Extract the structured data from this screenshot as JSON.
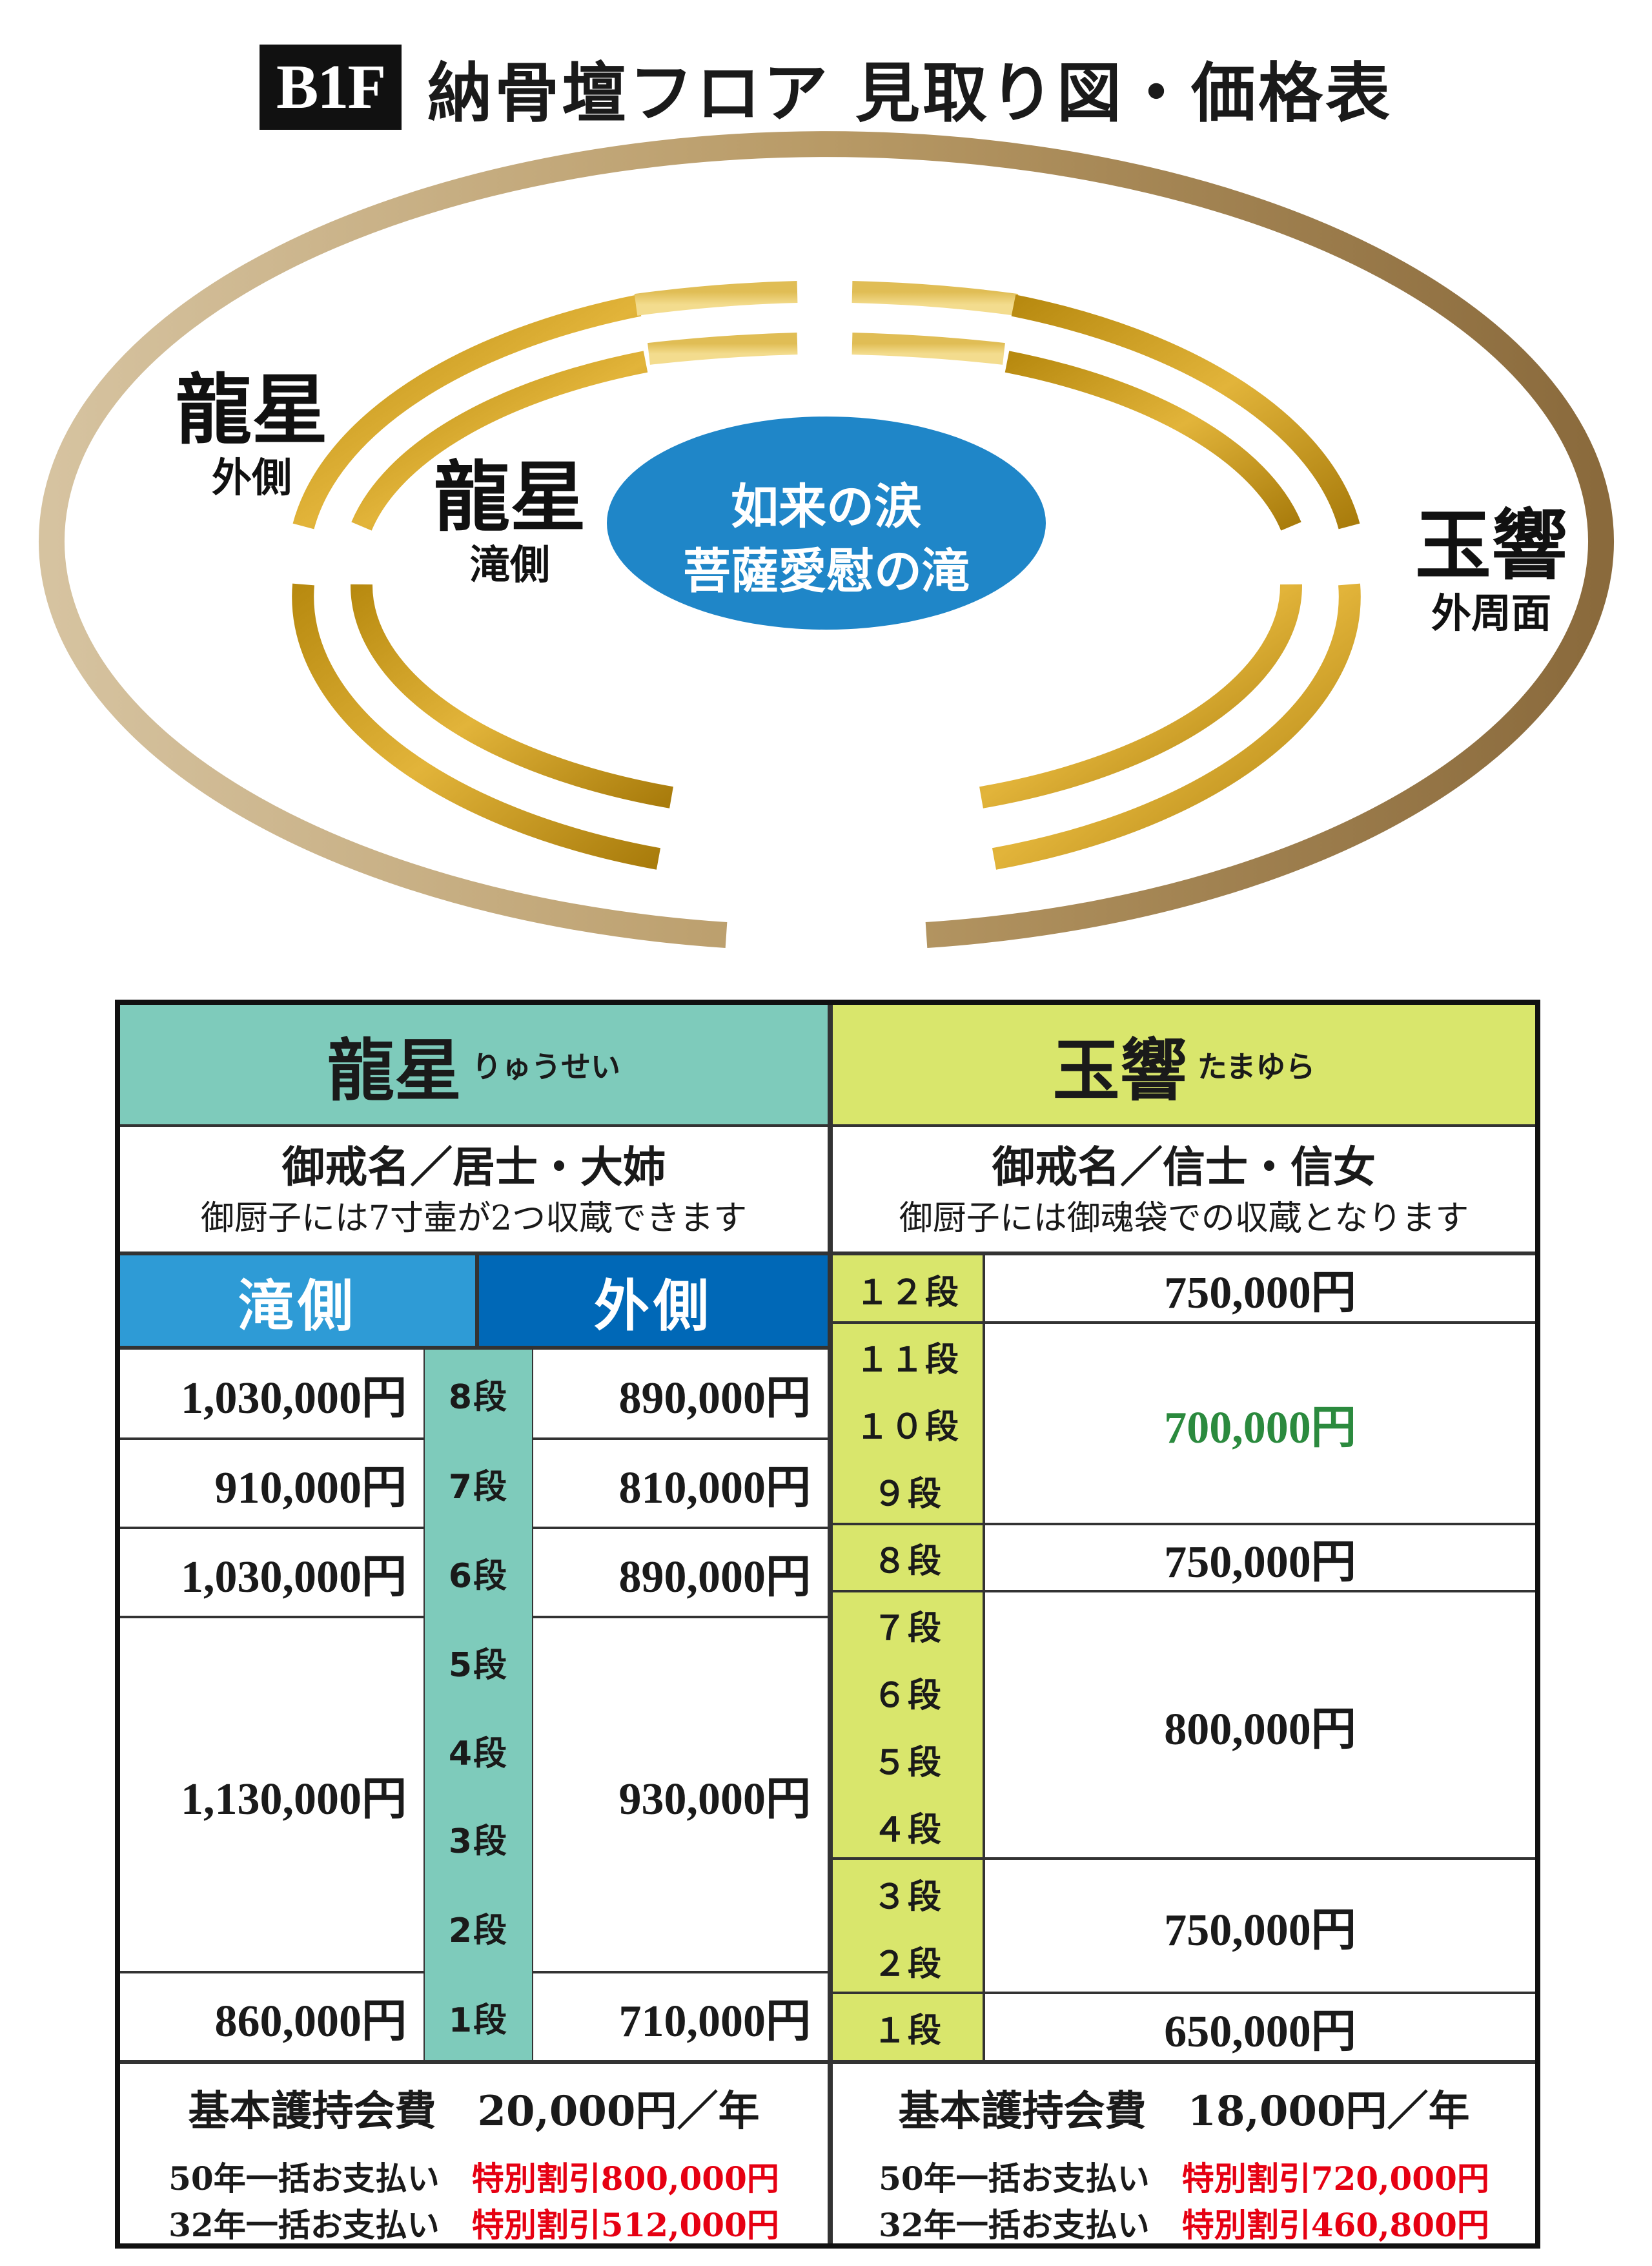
{
  "header": {
    "floor": "B1F",
    "title": "納骨壇フロア 見取り図・価格表"
  },
  "map": {
    "left_outer": {
      "name": "龍星",
      "sub": "外側"
    },
    "left_inner": {
      "name": "龍星",
      "sub": "滝側"
    },
    "center": {
      "line1": "如来の涙",
      "line2": "菩薩愛慰の滝"
    },
    "right": {
      "name": "玉響",
      "sub": "外周面"
    }
  },
  "ryusei": {
    "name": "龍星",
    "reading": "りゅうせい",
    "desc1": "御戒名／居士・大姉",
    "desc2": "御厨子には7寸壷が2つ収蔵できます",
    "col_taki": "滝側",
    "col_soto": "外側",
    "rows": [
      {
        "taki": "1,030,000円",
        "soto": "890,000円"
      },
      {
        "taki": "910,000円",
        "soto": "810,000円"
      },
      {
        "taki": "1,030,000円",
        "soto": "890,000円"
      },
      {
        "taki": "1,130,000円",
        "soto": "930,000円"
      },
      {
        "taki": "860,000円",
        "soto": "710,000円"
      }
    ],
    "tiers": [
      "8段",
      "7段",
      "6段",
      "5段",
      "4段",
      "3段",
      "2段",
      "1段"
    ],
    "fee": "基本護持会費　20,000円／年",
    "pay50_label": "50年一括お支払い",
    "pay50_value": "特別割引800,000円",
    "pay32_label": "32年一括お支払い",
    "pay32_value": "特別割引512,000円"
  },
  "tamayura": {
    "name": "玉響",
    "reading": "たまゆら",
    "desc1": "御戒名／信士・信女",
    "desc2": "御厨子には御魂袋での収蔵となります",
    "tiers": [
      "１２段",
      "１１段",
      "１０段",
      "９段",
      "８段",
      "７段",
      "６段",
      "５段",
      "４段",
      "３段",
      "２段",
      "１段"
    ],
    "prices": [
      "750,000円",
      "700,000円",
      "750,000円",
      "800,000円",
      "750,000円",
      "650,000円"
    ],
    "fee": "基本護持会費　18,000円／年",
    "pay50_label": "50年一括お支払い",
    "pay50_value": "特別割引720,000円",
    "pay32_label": "32年一括お支払い",
    "pay32_value": "特別割引460,800円"
  },
  "colors": {
    "teal": "#7ecbbb",
    "lime": "#d9e66c",
    "blue_light": "#2e9bd6",
    "blue_dark": "#0068b7",
    "gold": "#c89a1a",
    "center_blue": "#1f86c8",
    "discount_red": "#e60012",
    "highlight_green": "#2b8a3e"
  }
}
